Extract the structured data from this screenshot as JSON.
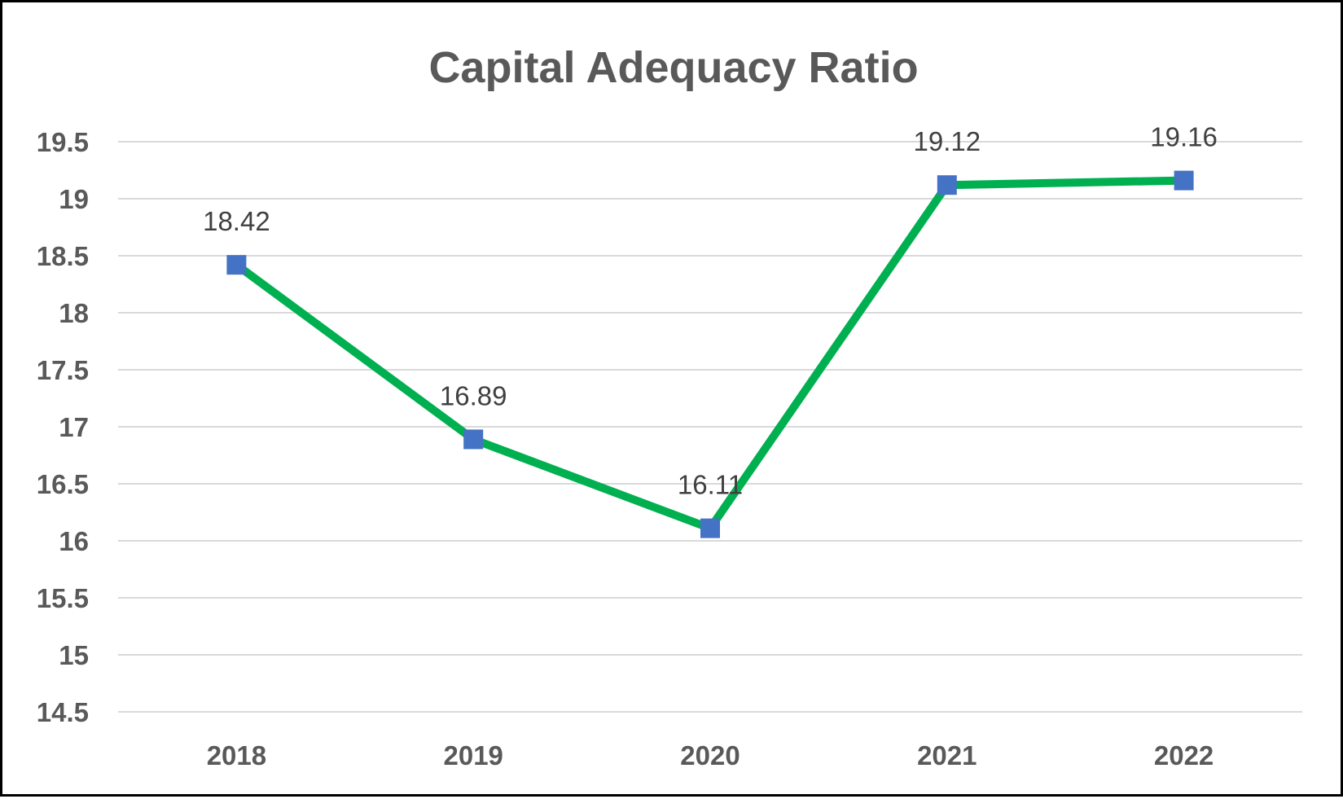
{
  "chart_data": {
    "type": "line",
    "title": "Capital Adequacy Ratio",
    "xlabel": "",
    "ylabel": "",
    "categories": [
      "2018",
      "2019",
      "2020",
      "2021",
      "2022"
    ],
    "series": [
      {
        "values": [
          18.42,
          16.89,
          16.11,
          19.12,
          19.16
        ],
        "labels": [
          "18.42",
          "16.89",
          "16.11",
          "19.12",
          "19.16"
        ],
        "line_color": "#00B050",
        "marker_color": "#4472C4",
        "marker": "square"
      }
    ],
    "ylim": [
      14.5,
      19.5
    ],
    "yticks": [
      "19.5",
      "19",
      "18.5",
      "18",
      "17.5",
      "17",
      "16.5",
      "16",
      "15.5",
      "15",
      "14.5"
    ],
    "grid": true,
    "legend": "none",
    "gridline_color": "#D9D9D9",
    "text_color": "#595959"
  }
}
